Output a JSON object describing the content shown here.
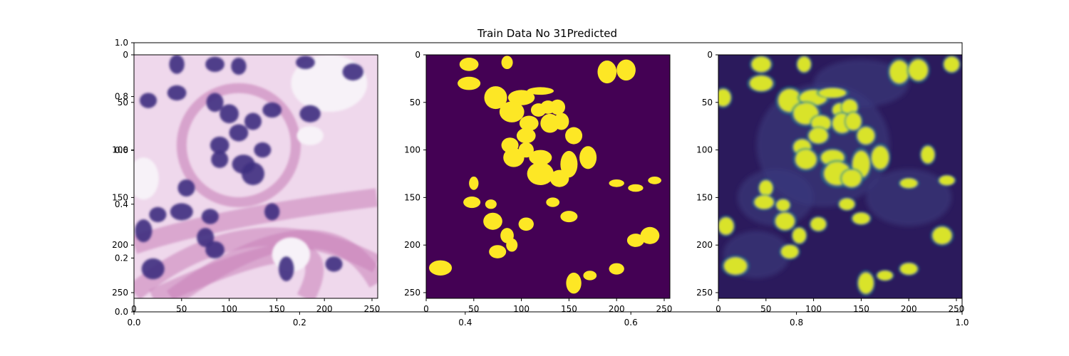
{
  "figure": {
    "title": "Train Data No 31Predicted",
    "background": "#ffffff"
  },
  "chart_data": [
    {
      "type": "heatmap",
      "role": "background-axes",
      "xlim": [
        0.0,
        1.0
      ],
      "ylim": [
        0.0,
        1.0
      ],
      "xticks": [
        "0.0",
        "0.2",
        "0.4",
        "0.6",
        "0.8",
        "1.0"
      ],
      "yticks": [
        "0.0",
        "0.2",
        "0.4",
        "0.6",
        "0.8",
        "1.0"
      ]
    },
    {
      "type": "heatmap",
      "role": "histology-image",
      "image_size": [
        256,
        256
      ],
      "xlim": [
        0,
        256
      ],
      "ylim": [
        256,
        0
      ],
      "xticks": [
        "0",
        "50",
        "100",
        "150",
        "200",
        "250"
      ],
      "yticks": [
        "0",
        "50",
        "100",
        "150",
        "200",
        "250"
      ],
      "colors": {
        "background": "#efd8ec",
        "stroma": "#c880b8",
        "nucleus": "#3e2f80",
        "lumen": "#f7f2f8"
      },
      "nuclei": [
        [
          45,
          10,
          8,
          10
        ],
        [
          85,
          10,
          10,
          8
        ],
        [
          110,
          12,
          8,
          9
        ],
        [
          180,
          8,
          10,
          7
        ],
        [
          230,
          18,
          11,
          9
        ],
        [
          15,
          48,
          9,
          8
        ],
        [
          45,
          40,
          10,
          8
        ],
        [
          85,
          50,
          9,
          10
        ],
        [
          145,
          58,
          10,
          8
        ],
        [
          185,
          62,
          11,
          9
        ],
        [
          100,
          62,
          10,
          10
        ],
        [
          125,
          70,
          9,
          9
        ],
        [
          110,
          82,
          10,
          9
        ],
        [
          90,
          95,
          10,
          9
        ],
        [
          135,
          100,
          9,
          8
        ],
        [
          115,
          115,
          12,
          10
        ],
        [
          90,
          110,
          9,
          9
        ],
        [
          125,
          125,
          12,
          12
        ],
        [
          55,
          140,
          9,
          9
        ],
        [
          50,
          165,
          12,
          9
        ],
        [
          25,
          168,
          9,
          8
        ],
        [
          10,
          185,
          9,
          12
        ],
        [
          80,
          170,
          9,
          8
        ],
        [
          145,
          165,
          8,
          9
        ],
        [
          75,
          192,
          9,
          10
        ],
        [
          85,
          205,
          10,
          9
        ],
        [
          20,
          225,
          12,
          11
        ],
        [
          160,
          225,
          8,
          13
        ],
        [
          210,
          220,
          9,
          8
        ]
      ],
      "lumens": [
        [
          205,
          30,
          40,
          30
        ],
        [
          185,
          85,
          14,
          10
        ],
        [
          165,
          210,
          20,
          18
        ],
        [
          10,
          130,
          16,
          22
        ]
      ]
    },
    {
      "type": "heatmap",
      "role": "ground-truth-mask",
      "image_size": [
        256,
        256
      ],
      "xlim": [
        0,
        256
      ],
      "ylim": [
        256,
        0
      ],
      "xticks": [
        "0",
        "50",
        "100",
        "150",
        "200",
        "250"
      ],
      "yticks": [
        "0",
        "50",
        "100",
        "150",
        "200",
        "250"
      ],
      "colors": {
        "low": "#440154",
        "high": "#fde725"
      },
      "nuclei": [
        [
          45,
          10,
          10,
          7
        ],
        [
          85,
          8,
          6,
          7
        ],
        [
          190,
          18,
          10,
          12
        ],
        [
          210,
          16,
          10,
          11
        ],
        [
          45,
          30,
          12,
          7
        ],
        [
          73,
          45,
          12,
          12
        ],
        [
          100,
          45,
          14,
          8
        ],
        [
          120,
          38,
          14,
          4
        ],
        [
          90,
          60,
          13,
          11
        ],
        [
          118,
          58,
          8,
          7
        ],
        [
          128,
          55,
          8,
          7
        ],
        [
          138,
          55,
          8,
          8
        ],
        [
          108,
          72,
          10,
          8
        ],
        [
          130,
          72,
          10,
          10
        ],
        [
          142,
          70,
          8,
          9
        ],
        [
          105,
          85,
          10,
          8
        ],
        [
          155,
          85,
          9,
          9
        ],
        [
          88,
          95,
          9,
          8
        ],
        [
          105,
          100,
          8,
          8
        ],
        [
          92,
          108,
          11,
          10
        ],
        [
          120,
          108,
          12,
          8
        ],
        [
          170,
          108,
          9,
          12
        ],
        [
          150,
          115,
          9,
          14
        ],
        [
          120,
          125,
          14,
          12
        ],
        [
          140,
          130,
          10,
          9
        ],
        [
          50,
          135,
          5,
          7
        ],
        [
          200,
          135,
          8,
          4
        ],
        [
          220,
          140,
          8,
          4
        ],
        [
          240,
          132,
          7,
          4
        ],
        [
          48,
          155,
          9,
          6
        ],
        [
          68,
          157,
          6,
          5
        ],
        [
          133,
          155,
          7,
          5
        ],
        [
          70,
          175,
          10,
          9
        ],
        [
          105,
          178,
          8,
          7
        ],
        [
          150,
          170,
          9,
          6
        ],
        [
          85,
          190,
          7,
          8
        ],
        [
          75,
          207,
          9,
          7
        ],
        [
          90,
          200,
          6,
          7
        ],
        [
          235,
          190,
          10,
          9
        ],
        [
          220,
          195,
          9,
          7
        ],
        [
          15,
          224,
          12,
          8
        ],
        [
          155,
          240,
          8,
          11
        ],
        [
          200,
          225,
          8,
          6
        ],
        [
          172,
          232,
          7,
          5
        ]
      ]
    },
    {
      "type": "heatmap",
      "role": "predicted-mask",
      "image_size": [
        256,
        256
      ],
      "xlim": [
        0,
        256
      ],
      "ylim": [
        256,
        0
      ],
      "xticks": [
        "0",
        "50",
        "100",
        "150",
        "200",
        "250"
      ],
      "yticks": [
        "0",
        "50",
        "100",
        "150",
        "200",
        "250"
      ],
      "colors": {
        "low": "#2b1a5c",
        "mid": "#23898e",
        "high": "#d9e32a"
      },
      "nuclei": [
        [
          45,
          10,
          10,
          8
        ],
        [
          90,
          10,
          7,
          8
        ],
        [
          190,
          18,
          10,
          12
        ],
        [
          210,
          16,
          10,
          11
        ],
        [
          245,
          10,
          8,
          8
        ],
        [
          5,
          45,
          8,
          9
        ],
        [
          45,
          30,
          12,
          8
        ],
        [
          75,
          48,
          12,
          12
        ],
        [
          100,
          45,
          14,
          8
        ],
        [
          120,
          40,
          14,
          5
        ],
        [
          92,
          62,
          13,
          11
        ],
        [
          128,
          58,
          8,
          7
        ],
        [
          138,
          55,
          8,
          8
        ],
        [
          108,
          72,
          10,
          8
        ],
        [
          130,
          72,
          10,
          10
        ],
        [
          142,
          70,
          8,
          9
        ],
        [
          105,
          85,
          10,
          8
        ],
        [
          155,
          85,
          9,
          9
        ],
        [
          88,
          97,
          9,
          8
        ],
        [
          92,
          110,
          11,
          10
        ],
        [
          120,
          108,
          12,
          8
        ],
        [
          170,
          108,
          9,
          12
        ],
        [
          150,
          115,
          9,
          14
        ],
        [
          125,
          125,
          14,
          12
        ],
        [
          140,
          130,
          10,
          9
        ],
        [
          220,
          105,
          7,
          9
        ],
        [
          50,
          140,
          7,
          8
        ],
        [
          200,
          135,
          9,
          5
        ],
        [
          240,
          132,
          8,
          5
        ],
        [
          48,
          155,
          10,
          7
        ],
        [
          68,
          158,
          7,
          6
        ],
        [
          135,
          157,
          8,
          6
        ],
        [
          70,
          175,
          10,
          9
        ],
        [
          105,
          178,
          8,
          7
        ],
        [
          150,
          172,
          9,
          6
        ],
        [
          85,
          190,
          7,
          8
        ],
        [
          75,
          207,
          9,
          7
        ],
        [
          235,
          190,
          10,
          9
        ],
        [
          8,
          180,
          8,
          9
        ],
        [
          18,
          222,
          12,
          9
        ],
        [
          155,
          240,
          8,
          11
        ],
        [
          200,
          225,
          9,
          6
        ],
        [
          175,
          232,
          8,
          5
        ]
      ]
    }
  ]
}
